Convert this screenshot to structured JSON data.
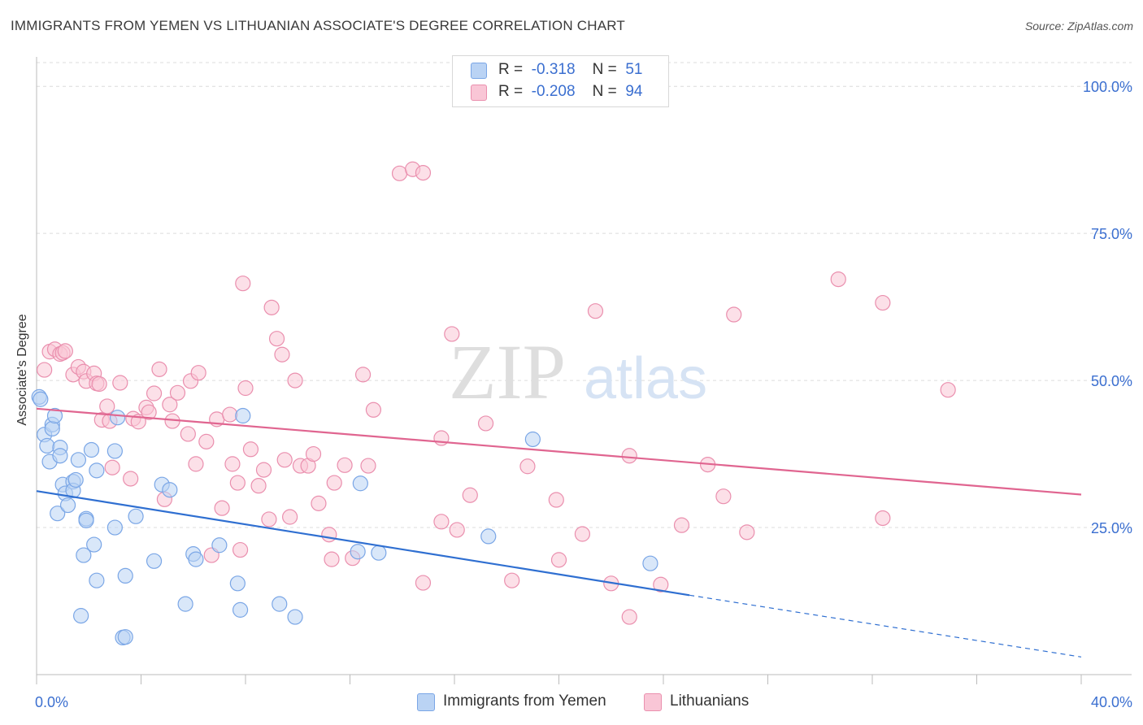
{
  "title": "IMMIGRANTS FROM YEMEN VS LITHUANIAN ASSOCIATE'S DEGREE CORRELATION CHART",
  "source": "Source: ZipAtlas.com",
  "watermark": {
    "zip": "ZIP",
    "atlas": "atlas"
  },
  "legend": {
    "blue": {
      "r_label": "R =",
      "r_value": "-0.318",
      "n_label": "N =",
      "n_value": "51"
    },
    "pink": {
      "r_label": "R =",
      "r_value": "-0.208",
      "n_label": "N =",
      "n_value": "94"
    }
  },
  "colors": {
    "blue_fill": "#bad3f4",
    "blue_stroke": "#7aa6e6",
    "blue_line": "#2f6fd1",
    "pink_fill": "#f9c6d6",
    "pink_stroke": "#ea8fae",
    "pink_line": "#e06590",
    "tick_label": "#3b6fd0",
    "grid": "#dcdcdc"
  },
  "chart_data": {
    "type": "scatter",
    "title": "IMMIGRANTS FROM YEMEN VS LITHUANIAN ASSOCIATE'S DEGREE CORRELATION CHART",
    "xlabel": "",
    "ylabel": "Associate's Degree",
    "xlim": [
      0,
      40
    ],
    "ylim": [
      0,
      105
    ],
    "x_tick_labels": [
      "0.0%",
      "40.0%"
    ],
    "y_ticks": [
      25,
      50,
      75,
      100
    ],
    "y_tick_labels": [
      "25.0%",
      "50.0%",
      "75.0%",
      "100.0%"
    ],
    "grid": true,
    "legend_position": "top-center",
    "series": [
      {
        "name": "Immigrants from Yemen",
        "color": "blue",
        "trend": {
          "x": [
            0,
            25
          ],
          "y": [
            31.2,
            13.5
          ],
          "dashed_to": [
            40,
            3.0
          ]
        },
        "points": [
          [
            0.1,
            47.2
          ],
          [
            0.3,
            40.8
          ],
          [
            0.4,
            38.9
          ],
          [
            0.5,
            36.2
          ],
          [
            0.6,
            42.5
          ],
          [
            0.6,
            41.8
          ],
          [
            0.7,
            44.0
          ],
          [
            0.8,
            27.4
          ],
          [
            0.9,
            38.6
          ],
          [
            0.9,
            37.2
          ],
          [
            1.0,
            32.3
          ],
          [
            1.1,
            30.8
          ],
          [
            1.2,
            28.8
          ],
          [
            1.4,
            32.8
          ],
          [
            1.4,
            31.3
          ],
          [
            1.5,
            33.1
          ],
          [
            1.6,
            36.5
          ],
          [
            1.7,
            10.0
          ],
          [
            1.8,
            20.3
          ],
          [
            1.9,
            26.5
          ],
          [
            1.9,
            26.2
          ],
          [
            2.1,
            38.2
          ],
          [
            2.2,
            22.1
          ],
          [
            2.3,
            34.7
          ],
          [
            2.3,
            16.0
          ],
          [
            3.0,
            38.0
          ],
          [
            3.0,
            25.0
          ],
          [
            3.1,
            43.7
          ],
          [
            3.3,
            6.3
          ],
          [
            3.4,
            6.4
          ],
          [
            3.4,
            16.8
          ],
          [
            3.8,
            26.9
          ],
          [
            4.5,
            19.3
          ],
          [
            4.8,
            32.3
          ],
          [
            5.1,
            31.4
          ],
          [
            5.7,
            12.0
          ],
          [
            6.0,
            20.5
          ],
          [
            6.1,
            19.6
          ],
          [
            7.0,
            22.0
          ],
          [
            7.7,
            15.5
          ],
          [
            7.8,
            11.0
          ],
          [
            7.9,
            44.0
          ],
          [
            9.3,
            12.0
          ],
          [
            9.9,
            9.8
          ],
          [
            12.3,
            20.9
          ],
          [
            12.4,
            32.5
          ],
          [
            13.1,
            20.7
          ],
          [
            17.3,
            23.5
          ],
          [
            19.0,
            40.0
          ],
          [
            23.5,
            18.9
          ],
          [
            0.15,
            46.8
          ]
        ]
      },
      {
        "name": "Lithuanians",
        "color": "pink",
        "trend": {
          "x": [
            0,
            40
          ],
          "y": [
            45.2,
            30.6
          ]
        },
        "points": [
          [
            0.3,
            51.8
          ],
          [
            0.5,
            54.9
          ],
          [
            0.7,
            55.3
          ],
          [
            0.9,
            54.5
          ],
          [
            1.0,
            54.7
          ],
          [
            1.1,
            55.0
          ],
          [
            1.4,
            51.0
          ],
          [
            1.6,
            52.3
          ],
          [
            1.8,
            51.5
          ],
          [
            1.9,
            49.9
          ],
          [
            2.2,
            51.2
          ],
          [
            2.3,
            49.5
          ],
          [
            2.4,
            49.4
          ],
          [
            2.5,
            43.3
          ],
          [
            2.7,
            45.6
          ],
          [
            2.8,
            43.1
          ],
          [
            2.9,
            35.2
          ],
          [
            3.2,
            49.6
          ],
          [
            3.6,
            33.3
          ],
          [
            3.7,
            43.5
          ],
          [
            3.9,
            43.0
          ],
          [
            4.2,
            45.4
          ],
          [
            4.3,
            44.6
          ],
          [
            4.5,
            47.8
          ],
          [
            4.7,
            51.9
          ],
          [
            4.9,
            29.8
          ],
          [
            5.1,
            45.9
          ],
          [
            5.2,
            43.1
          ],
          [
            5.4,
            47.9
          ],
          [
            5.8,
            40.9
          ],
          [
            5.9,
            49.9
          ],
          [
            6.1,
            35.8
          ],
          [
            6.2,
            51.3
          ],
          [
            6.5,
            39.6
          ],
          [
            6.7,
            20.3
          ],
          [
            6.9,
            43.4
          ],
          [
            7.1,
            28.3
          ],
          [
            7.4,
            44.2
          ],
          [
            7.5,
            35.8
          ],
          [
            7.7,
            32.6
          ],
          [
            7.8,
            21.2
          ],
          [
            7.9,
            66.5
          ],
          [
            8.0,
            48.7
          ],
          [
            8.2,
            38.3
          ],
          [
            8.5,
            32.1
          ],
          [
            8.7,
            34.8
          ],
          [
            8.9,
            26.4
          ],
          [
            9.0,
            62.4
          ],
          [
            9.2,
            57.1
          ],
          [
            9.4,
            54.4
          ],
          [
            9.5,
            36.5
          ],
          [
            9.7,
            26.8
          ],
          [
            9.9,
            50.0
          ],
          [
            10.1,
            35.5
          ],
          [
            10.4,
            35.5
          ],
          [
            10.6,
            37.5
          ],
          [
            10.8,
            29.1
          ],
          [
            11.2,
            23.8
          ],
          [
            11.3,
            19.6
          ],
          [
            11.4,
            32.6
          ],
          [
            11.8,
            35.6
          ],
          [
            12.1,
            19.8
          ],
          [
            12.5,
            51.0
          ],
          [
            12.7,
            35.5
          ],
          [
            12.9,
            45.0
          ],
          [
            13.9,
            85.2
          ],
          [
            14.4,
            85.9
          ],
          [
            14.8,
            85.3
          ],
          [
            14.8,
            15.6
          ],
          [
            15.5,
            40.2
          ],
          [
            15.5,
            26.0
          ],
          [
            15.9,
            57.9
          ],
          [
            16.1,
            24.6
          ],
          [
            16.6,
            30.5
          ],
          [
            17.2,
            42.7
          ],
          [
            18.2,
            16.0
          ],
          [
            18.8,
            35.4
          ],
          [
            19.9,
            29.7
          ],
          [
            20.0,
            19.5
          ],
          [
            20.9,
            23.9
          ],
          [
            21.4,
            61.8
          ],
          [
            22.0,
            15.5
          ],
          [
            22.7,
            37.2
          ],
          [
            22.7,
            9.8
          ],
          [
            23.9,
            15.3
          ],
          [
            24.7,
            25.4
          ],
          [
            25.7,
            35.7
          ],
          [
            26.3,
            30.3
          ],
          [
            26.7,
            61.2
          ],
          [
            27.2,
            24.2
          ],
          [
            30.7,
            67.2
          ],
          [
            32.4,
            26.6
          ],
          [
            32.4,
            63.2
          ],
          [
            34.9,
            48.4
          ]
        ]
      }
    ]
  },
  "bottom_legend": [
    {
      "label": "Immigrants from Yemen",
      "color": "blue"
    },
    {
      "label": "Lithuanians",
      "color": "pink"
    }
  ]
}
